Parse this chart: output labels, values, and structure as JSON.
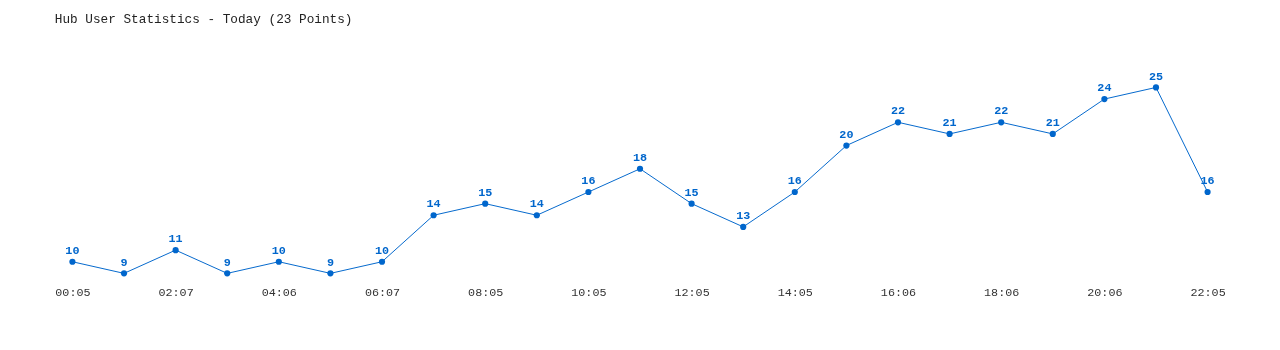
{
  "chart_data": {
    "type": "line",
    "title": "Hub User Statistics - Today (23 Points)",
    "categories": [
      "00:05",
      null,
      "02:07",
      null,
      "04:06",
      null,
      "06:07",
      null,
      "08:05",
      null,
      "10:05",
      null,
      "12:05",
      null,
      "14:05",
      null,
      "16:06",
      null,
      "18:06",
      null,
      "20:06",
      null,
      "22:05"
    ],
    "series": [
      {
        "color": "#0066cc",
        "values": [
          10,
          9,
          11,
          9,
          10,
          9,
          10,
          14,
          15,
          14,
          16,
          18,
          15,
          13,
          16,
          20,
          22,
          21,
          22,
          21,
          24,
          25,
          16
        ]
      }
    ],
    "data_labels": true,
    "marker": "circle",
    "line_style": "solid",
    "grid": false,
    "tick_labels": "x"
  }
}
